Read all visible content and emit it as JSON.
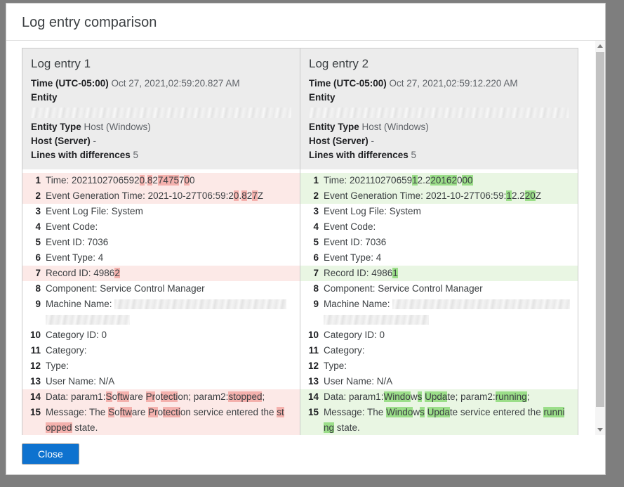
{
  "dialog": {
    "title": "Log entry comparison",
    "close_label": "Close"
  },
  "colors": {
    "removed_row_bg": "#fce9e7",
    "removed_highlight": "#f4b1ad",
    "added_row_bg": "#e9f6e3",
    "added_highlight": "#9bde89",
    "close_button": "#0e72cf"
  },
  "panels": [
    {
      "title": "Log entry 1",
      "tone": "removed",
      "meta": [
        {
          "label": "Time (UTC-05:00)",
          "value": "Oct 27, 2021,02:59:20.827 AM"
        },
        {
          "label": "Entity",
          "redacted": true,
          "redacted_width": 371
        },
        {
          "label": "Entity Type",
          "value": "Host (Windows)"
        },
        {
          "label": "Host (Server)",
          "value": "-"
        },
        {
          "label": "Lines with differences",
          "value": "5"
        }
      ],
      "lines": [
        {
          "no": "1",
          "chg": true,
          "parts": [
            [
              {
                "t": "Time: 2021102706592"
              },
              {
                "t": "0",
                "h": true
              },
              {
                "t": "."
              },
              {
                "t": "8",
                "h": true
              },
              {
                "t": "2"
              },
              {
                "t": "7475",
                "h": true
              },
              {
                "t": "7"
              },
              {
                "t": "0",
                "h": true
              },
              {
                "t": "0"
              }
            ]
          ]
        },
        {
          "no": "2",
          "chg": true,
          "parts": [
            [
              {
                "t": "Event Generation Time: 2021-10-27T06:59:2"
              },
              {
                "t": "0",
                "h": true
              },
              {
                "t": "."
              },
              {
                "t": "8",
                "h": true
              },
              {
                "t": "2"
              },
              {
                "t": "7",
                "h": true
              },
              {
                "t": "Z"
              }
            ]
          ]
        },
        {
          "no": "3",
          "chg": false,
          "parts": [
            [
              {
                "t": "Event Log File: System"
              }
            ]
          ]
        },
        {
          "no": "4",
          "chg": false,
          "parts": [
            [
              {
                "t": "Event Code:"
              }
            ]
          ]
        },
        {
          "no": "5",
          "chg": false,
          "parts": [
            [
              {
                "t": "Event ID: 7036"
              }
            ]
          ]
        },
        {
          "no": "6",
          "chg": false,
          "parts": [
            [
              {
                "t": "Event Type: 4"
              }
            ]
          ]
        },
        {
          "no": "7",
          "chg": true,
          "parts": [
            [
              {
                "t": "Record ID: 4986"
              },
              {
                "t": "2",
                "h": true
              }
            ]
          ]
        },
        {
          "no": "8",
          "chg": false,
          "parts": [
            [
              {
                "t": "Component: Service Control Manager"
              }
            ]
          ]
        },
        {
          "no": "9",
          "chg": false,
          "parts": [
            [
              {
                "t": "Machine Name: "
              },
              {
                "r": 245
              }
            ],
            [
              {
                "r": 120
              }
            ]
          ]
        },
        {
          "no": "10",
          "chg": false,
          "parts": [
            [
              {
                "t": "Category ID: 0"
              }
            ]
          ]
        },
        {
          "no": "11",
          "chg": false,
          "parts": [
            [
              {
                "t": "Category:"
              }
            ]
          ]
        },
        {
          "no": "12",
          "chg": false,
          "parts": [
            [
              {
                "t": "Type:"
              }
            ]
          ]
        },
        {
          "no": "13",
          "chg": false,
          "parts": [
            [
              {
                "t": "User Name: N/A"
              }
            ]
          ]
        },
        {
          "no": "14",
          "chg": true,
          "parts": [
            [
              {
                "t": "Data: param1:"
              },
              {
                "t": "S",
                "h": true
              },
              {
                "t": "o"
              },
              {
                "t": "ftw",
                "h": true
              },
              {
                "t": "are "
              },
              {
                "t": "Pr",
                "h": true
              },
              {
                "t": "o"
              },
              {
                "t": "tecti",
                "h": true
              },
              {
                "t": "on; param2:"
              },
              {
                "t": "stopped",
                "h": true
              },
              {
                "t": ";"
              }
            ]
          ]
        },
        {
          "no": "15",
          "chg": true,
          "parts": [
            [
              {
                "t": "Message: The "
              },
              {
                "t": "S",
                "h": true
              },
              {
                "t": "o"
              },
              {
                "t": "ftw",
                "h": true
              },
              {
                "t": "are "
              },
              {
                "t": "Pr",
                "h": true
              },
              {
                "t": "o"
              },
              {
                "t": "tecti",
                "h": true
              },
              {
                "t": "on service entered the "
              },
              {
                "t": "st",
                "h": true
              }
            ],
            [
              {
                "t": "opped",
                "h": true
              },
              {
                "t": " state."
              }
            ]
          ]
        },
        {
          "no": "",
          "chg": true,
          "clip": true,
          "parts": [
            [
              {
                "b": 14
              },
              {
                "g": 8
              },
              {
                "b": 44
              }
            ]
          ]
        }
      ]
    },
    {
      "title": "Log entry 2",
      "tone": "added",
      "meta": [
        {
          "label": "Time (UTC-05:00)",
          "value": "Oct 27, 2021,02:59:12.220 AM"
        },
        {
          "label": "Entity",
          "redacted": true,
          "redacted_width": 370
        },
        {
          "label": "Entity Type",
          "value": "Host (Windows)"
        },
        {
          "label": "Host (Server)",
          "value": "-"
        },
        {
          "label": "Lines with differences",
          "value": "5"
        }
      ],
      "lines": [
        {
          "no": "1",
          "chg": true,
          "parts": [
            [
              {
                "t": "Time: 202110270659"
              },
              {
                "t": "1",
                "h": true
              },
              {
                "t": "2.2"
              },
              {
                "t": "20162",
                "h": true
              },
              {
                "t": "0"
              },
              {
                "t": "00",
                "h": true
              }
            ]
          ]
        },
        {
          "no": "2",
          "chg": true,
          "parts": [
            [
              {
                "t": "Event Generation Time: 2021-10-27T06:59:"
              },
              {
                "t": "1",
                "h": true
              },
              {
                "t": "2.2"
              },
              {
                "t": "20",
                "h": true
              },
              {
                "t": "Z"
              }
            ]
          ]
        },
        {
          "no": "3",
          "chg": false,
          "parts": [
            [
              {
                "t": "Event Log File: System"
              }
            ]
          ]
        },
        {
          "no": "4",
          "chg": false,
          "parts": [
            [
              {
                "t": "Event Code:"
              }
            ]
          ]
        },
        {
          "no": "5",
          "chg": false,
          "parts": [
            [
              {
                "t": "Event ID: 7036"
              }
            ]
          ]
        },
        {
          "no": "6",
          "chg": false,
          "parts": [
            [
              {
                "t": "Event Type: 4"
              }
            ]
          ]
        },
        {
          "no": "7",
          "chg": true,
          "parts": [
            [
              {
                "t": "Record ID: 4986"
              },
              {
                "t": "1",
                "h": true
              }
            ]
          ]
        },
        {
          "no": "8",
          "chg": false,
          "parts": [
            [
              {
                "t": "Component: Service Control Manager"
              }
            ]
          ]
        },
        {
          "no": "9",
          "chg": false,
          "parts": [
            [
              {
                "t": "Machine Name: "
              },
              {
                "r": 253
              }
            ],
            [
              {
                "r": 150
              }
            ]
          ]
        },
        {
          "no": "10",
          "chg": false,
          "parts": [
            [
              {
                "t": "Category ID: 0"
              }
            ]
          ]
        },
        {
          "no": "11",
          "chg": false,
          "parts": [
            [
              {
                "t": "Category:"
              }
            ]
          ]
        },
        {
          "no": "12",
          "chg": false,
          "parts": [
            [
              {
                "t": "Type:"
              }
            ]
          ]
        },
        {
          "no": "13",
          "chg": false,
          "parts": [
            [
              {
                "t": "User Name: N/A"
              }
            ]
          ]
        },
        {
          "no": "14",
          "chg": true,
          "parts": [
            [
              {
                "t": "Data: param1:"
              },
              {
                "t": "Windo",
                "h": true
              },
              {
                "t": "w"
              },
              {
                "t": "s",
                "h": true
              },
              {
                "t": " "
              },
              {
                "t": "Upda",
                "h": true
              },
              {
                "t": "te; param2:"
              },
              {
                "t": "running",
                "h": true
              },
              {
                "t": ";"
              }
            ]
          ]
        },
        {
          "no": "15",
          "chg": true,
          "parts": [
            [
              {
                "t": "Message: The "
              },
              {
                "t": "Windo",
                "h": true
              },
              {
                "t": "w"
              },
              {
                "t": "s",
                "h": true
              },
              {
                "t": " "
              },
              {
                "t": "Upda",
                "h": true
              },
              {
                "t": "te service entered the "
              },
              {
                "t": "runni",
                "h": true
              }
            ],
            [
              {
                "t": "ng",
                "h": true
              },
              {
                "t": " state."
              }
            ]
          ]
        },
        {
          "no": "",
          "chg": true,
          "clip": true,
          "parts": [
            [
              {
                "b": 16
              },
              {
                "g": 8
              },
              {
                "b": 36
              }
            ]
          ]
        }
      ]
    }
  ]
}
